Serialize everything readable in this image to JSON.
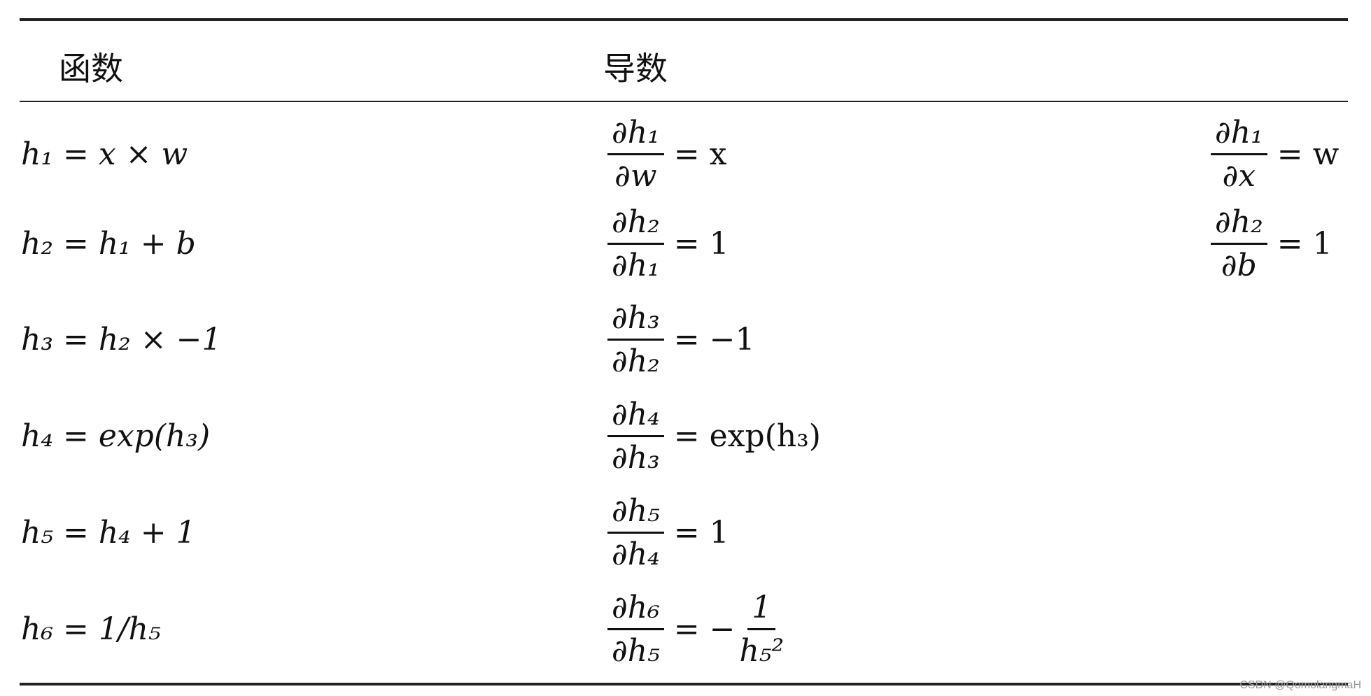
{
  "headers": {
    "function": "函数",
    "derivative": "导数"
  },
  "rows": [
    {
      "function": "h₁ = x × w",
      "d1": {
        "num": "∂h₁",
        "den": "∂w",
        "rhs": "= x"
      },
      "d2": {
        "num": "∂h₁",
        "den": "∂x",
        "rhs": "= w"
      }
    },
    {
      "function": "h₂ = h₁ + b",
      "d1": {
        "num": "∂h₂",
        "den": "∂h₁",
        "rhs": "= 1"
      },
      "d2": {
        "num": "∂h₂",
        "den": "∂b",
        "rhs": "= 1"
      }
    },
    {
      "function": "h₃ = h₂ × −1",
      "d1": {
        "num": "∂h₃",
        "den": "∂h₂",
        "rhs": "= −1"
      }
    },
    {
      "function": "h₄ = exp(h₃)",
      "d1": {
        "num": "∂h₄",
        "den": "∂h₃",
        "rhs": "= exp(h₃)"
      }
    },
    {
      "function": "h₅ = h₄ + 1",
      "d1": {
        "num": "∂h₅",
        "den": "∂h₄",
        "rhs": "= 1"
      }
    },
    {
      "function": "h₆ = 1/h₅",
      "d1": {
        "num": "∂h₆",
        "den": "∂h₅",
        "rhs": "= −"
      },
      "d1_tail": {
        "num": "1",
        "den": "h₅²"
      }
    }
  ],
  "watermark": "CSDN @QomolangmaH"
}
